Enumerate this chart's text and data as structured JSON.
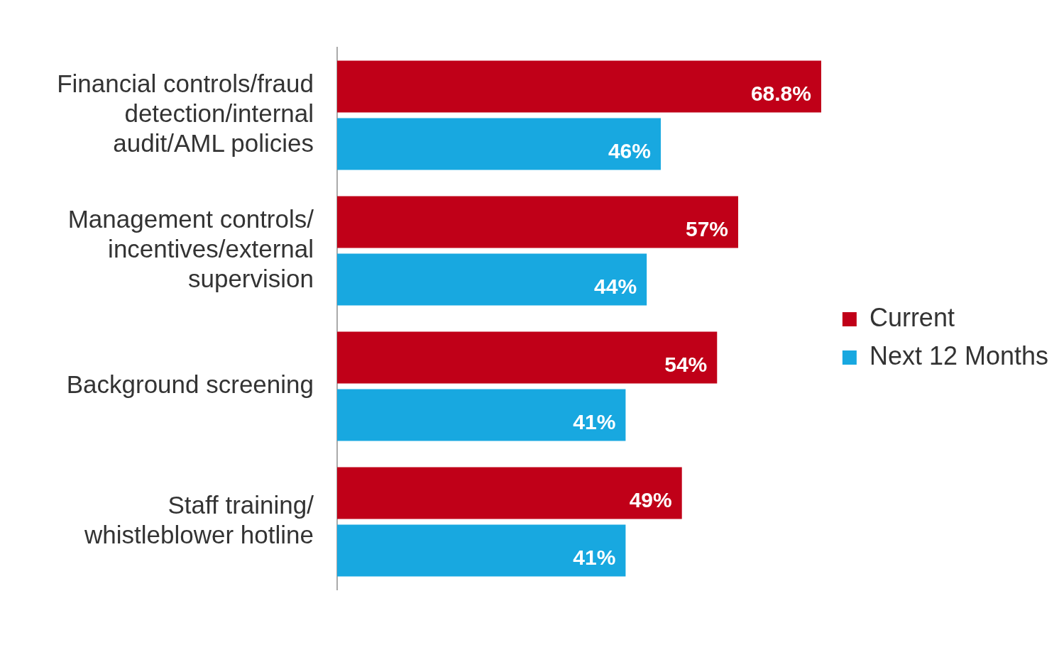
{
  "chart_data": {
    "type": "bar",
    "orientation": "horizontal",
    "categories": [
      "Financial controls/fraud detection/internal audit/AML policies",
      "Management controls/ incentives/external supervision",
      "Background screening",
      "Staff training/ whistleblower hotline"
    ],
    "series": [
      {
        "name": "Current",
        "color": "#c00018",
        "values": [
          68.8,
          57,
          54,
          49
        ],
        "value_labels": [
          "68.8%",
          "57%",
          "54%",
          "49%"
        ]
      },
      {
        "name": "Next 12 Months",
        "color": "#18a8e0",
        "values": [
          46,
          44,
          41,
          41
        ],
        "value_labels": [
          "46%",
          "44%",
          "41%",
          "41%"
        ]
      }
    ],
    "grid": false,
    "legend": "right"
  }
}
